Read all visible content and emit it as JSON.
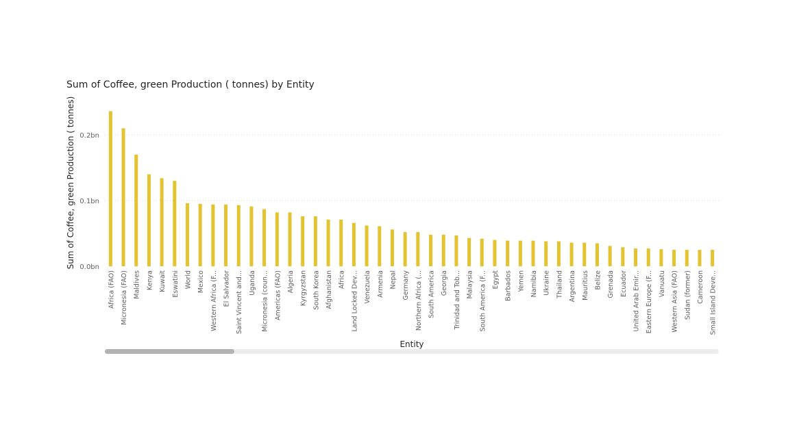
{
  "chart_data": {
    "type": "bar",
    "title": "Sum of Coffee, green Production ( tonnes) by Entity",
    "xlabel": "Entity",
    "ylabel": "Sum of Coffee, green Production ( tonnes)",
    "ylim": [
      0,
      0.25
    ],
    "unit": "bn",
    "yticks": [
      {
        "value": 0.0,
        "label": "0.0bn"
      },
      {
        "value": 0.1,
        "label": "0.1bn"
      },
      {
        "value": 0.2,
        "label": "0.2bn"
      }
    ],
    "grid": true,
    "bar_color": "#E3C32F",
    "categories": [
      "Africa (FAO)",
      "Micronesia (FAO)",
      "Maldives",
      "Kenya",
      "Kuwait",
      "Eswatini",
      "World",
      "Mexico",
      "Western Africa (F...",
      "El Salvador",
      "Saint Vincent and...",
      "Uganda",
      "Micronesia (coun...",
      "Americas (FAO)",
      "Algeria",
      "Kyrgyzstan",
      "South Korea",
      "Afghanistan",
      "Africa",
      "Land Locked Dev...",
      "Venezuela",
      "Armenia",
      "Nepal",
      "Germany",
      "Northern Africa (...",
      "South America",
      "Georgia",
      "Trinidad and Tob...",
      "Malaysia",
      "South America (F...",
      "Egypt",
      "Barbados",
      "Yemen",
      "Namibia",
      "Ukraine",
      "Thailand",
      "Argentina",
      "Mauritius",
      "Belize",
      "Grenada",
      "Ecuador",
      "United Arab Emir...",
      "Eastern Europe (F...",
      "Vanuatu",
      "Western Asia (FAO)",
      "Sudan (former)",
      "Cameroon",
      "Small Island Deve..."
    ],
    "values": [
      0.236,
      0.21,
      0.17,
      0.14,
      0.134,
      0.13,
      0.096,
      0.095,
      0.094,
      0.094,
      0.093,
      0.091,
      0.087,
      0.082,
      0.082,
      0.076,
      0.076,
      0.071,
      0.071,
      0.066,
      0.062,
      0.061,
      0.056,
      0.052,
      0.052,
      0.048,
      0.048,
      0.047,
      0.043,
      0.042,
      0.04,
      0.039,
      0.039,
      0.039,
      0.038,
      0.038,
      0.036,
      0.036,
      0.035,
      0.031,
      0.029,
      0.027,
      0.027,
      0.026,
      0.025,
      0.025,
      0.025,
      0.025
    ]
  }
}
